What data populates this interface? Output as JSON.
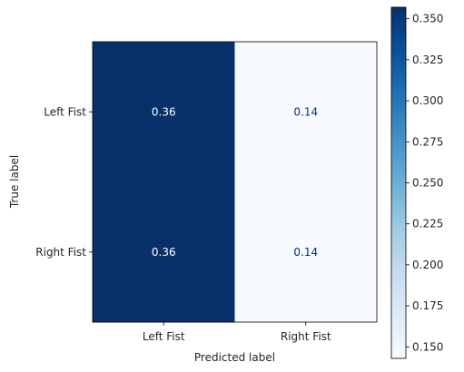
{
  "chart_data": {
    "type": "heatmap",
    "title": "",
    "xlabel": "Predicted label",
    "ylabel": "True label",
    "x_categories": [
      "Left Fist",
      "Right Fist"
    ],
    "y_categories": [
      "Left Fist",
      "Right Fist"
    ],
    "values": [
      [
        0.36,
        0.14
      ],
      [
        0.36,
        0.14
      ]
    ],
    "cell_labels": [
      [
        "0.36",
        "0.14"
      ],
      [
        "0.36",
        "0.14"
      ]
    ],
    "colormap": "Blues",
    "colors": {
      "high": "#08306b",
      "low": "#f7fbff",
      "text_on_dark": "#ffffff",
      "text_on_light": "#08306b"
    },
    "colorbar": {
      "range": [
        0.143,
        0.357
      ],
      "ticks": [
        0.15,
        0.175,
        0.2,
        0.225,
        0.25,
        0.275,
        0.3,
        0.325,
        0.35
      ],
      "tick_labels": [
        "0.150",
        "0.175",
        "0.200",
        "0.225",
        "0.250",
        "0.275",
        "0.300",
        "0.325",
        "0.350"
      ]
    }
  }
}
